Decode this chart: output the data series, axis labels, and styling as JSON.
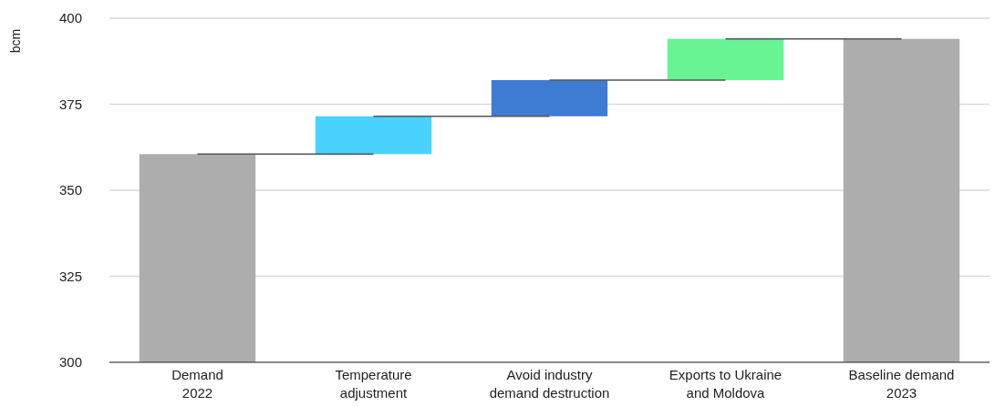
{
  "chart_data": {
    "type": "bar",
    "ylabel": "bcm",
    "categories": [
      "Demand\n2022",
      "Temperature\nadjustment",
      "Avoid industry\ndemand destruction",
      "Exports to Ukraine\nand Moldova",
      "Baseline demand\n2023"
    ],
    "values": [
      360.5,
      11,
      10.5,
      12,
      394
    ],
    "base": [
      null,
      360.5,
      371.5,
      382,
      null
    ],
    "colors": [
      "#adadad",
      "#4ad2fe",
      "#3e7bd3",
      "#68f493",
      "#adadad"
    ],
    "ylim": [
      300,
      400
    ],
    "yticks": [
      300,
      325,
      350,
      375,
      400
    ],
    "grid": "y"
  }
}
